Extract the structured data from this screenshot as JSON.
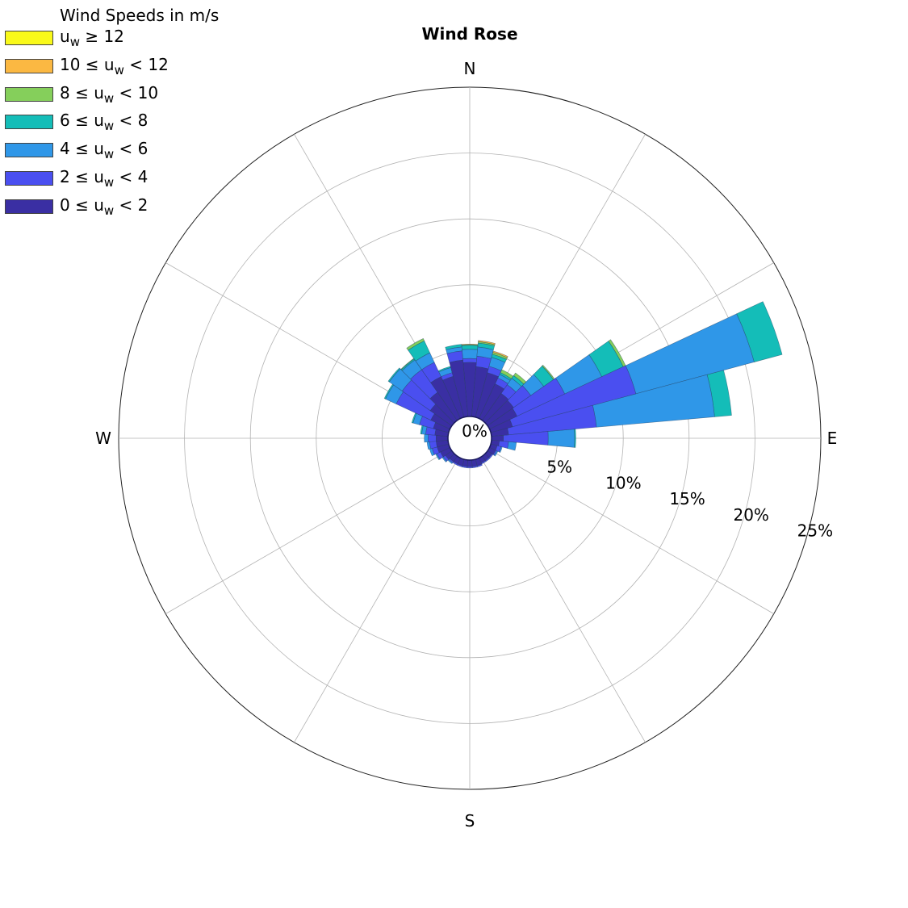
{
  "chart_data": {
    "type": "wind-rose",
    "title": "Wind Rose",
    "legend_title": "Wind Speeds in m/s",
    "legend_position": "top-left",
    "direction_labels": [
      "N",
      "E",
      "S",
      "W"
    ],
    "radial_ticks": [
      5,
      10,
      15,
      20,
      25
    ],
    "radial_tick_labels": [
      "5%",
      "10%",
      "15%",
      "20%",
      "25%"
    ],
    "center_label": "0%",
    "rmax": 25,
    "grid": true,
    "bins": [
      {
        "label": "0 ≤ u_w < 2",
        "color": "#3a2fa3"
      },
      {
        "label": "2 ≤ u_w < 4",
        "color": "#4a4ff0"
      },
      {
        "label": "4 ≤ u_w < 6",
        "color": "#2f97e8"
      },
      {
        "label": "6 ≤ u_w < 8",
        "color": "#14bdb8"
      },
      {
        "label": "8 ≤ u_w < 10",
        "color": "#85cf5b"
      },
      {
        "label": "10 ≤ u_w < 12",
        "color": "#fbb842"
      },
      {
        "label": "u_w ≥ 12",
        "color": "#f9f91a"
      }
    ],
    "legend_order": [
      6,
      5,
      4,
      3,
      2,
      1,
      0
    ],
    "sector_width_deg": 10,
    "sectors": [
      {
        "dir": 0,
        "cum": [
          4.1,
          4.4,
          5.1,
          5.4,
          5.45,
          5.5,
          5.5
        ]
      },
      {
        "dir": 10,
        "cum": [
          3.8,
          4.6,
          5.3,
          5.6,
          5.7,
          5.8,
          5.8
        ]
      },
      {
        "dir": 20,
        "cum": [
          3.5,
          4.0,
          4.7,
          4.95,
          5.1,
          5.2,
          5.2
        ]
      },
      {
        "dir": 30,
        "cum": [
          2.9,
          3.4,
          3.7,
          3.85,
          4.1,
          4.1,
          4.1
        ]
      },
      {
        "dir": 40,
        "cum": [
          2.5,
          3.3,
          3.9,
          4.15,
          4.4,
          4.4,
          4.4
        ]
      },
      {
        "dir": 50,
        "cum": [
          2.4,
          4.0,
          5.2,
          6.1,
          6.2,
          6.2,
          6.2
        ]
      },
      {
        "dir": 60,
        "cum": [
          2.3,
          6.3,
          9.4,
          11.2,
          11.4,
          11.4,
          11.4
        ]
      },
      {
        "dir": 70,
        "cum": [
          1.7,
          11.4,
          20.7,
          22.9,
          22.9,
          22.9,
          22.9
        ]
      },
      {
        "dir": 80,
        "cum": [
          1.3,
          8.0,
          17.0,
          18.3,
          18.3,
          18.3,
          18.3
        ]
      },
      {
        "dir": 90,
        "cum": [
          0.9,
          4.3,
          6.3,
          6.4,
          6.4,
          6.4,
          6.4
        ]
      },
      {
        "dir": 100,
        "cum": [
          0.6,
          1.3,
          1.9,
          1.9,
          1.9,
          1.9,
          1.9
        ]
      },
      {
        "dir": 110,
        "cum": [
          0.5,
          0.8,
          0.9,
          0.9,
          0.9,
          0.9,
          0.9
        ]
      },
      {
        "dir": 120,
        "cum": [
          0.5,
          0.6,
          0.7,
          0.7,
          0.7,
          0.7,
          0.7
        ]
      },
      {
        "dir": 130,
        "cum": [
          0.4,
          0.5,
          0.5,
          0.5,
          0.5,
          0.5,
          0.5
        ]
      },
      {
        "dir": 140,
        "cum": [
          0.4,
          0.5,
          0.5,
          0.5,
          0.5,
          0.5,
          0.5
        ]
      },
      {
        "dir": 150,
        "cum": [
          0.4,
          0.5,
          0.5,
          0.5,
          0.5,
          0.5,
          0.5
        ]
      },
      {
        "dir": 160,
        "cum": [
          0.5,
          0.6,
          0.6,
          0.6,
          0.6,
          0.6,
          0.6
        ]
      },
      {
        "dir": 170,
        "cum": [
          0.5,
          0.6,
          0.6,
          0.6,
          0.6,
          0.6,
          0.6
        ]
      },
      {
        "dir": 180,
        "cum": [
          0.5,
          0.6,
          0.6,
          0.6,
          0.6,
          0.6,
          0.6
        ]
      },
      {
        "dir": 190,
        "cum": [
          0.5,
          0.6,
          0.6,
          0.6,
          0.6,
          0.6,
          0.6
        ]
      },
      {
        "dir": 200,
        "cum": [
          0.5,
          0.6,
          0.6,
          0.6,
          0.6,
          0.6,
          0.6
        ]
      },
      {
        "dir": 210,
        "cum": [
          0.5,
          0.6,
          0.6,
          0.6,
          0.6,
          0.6,
          0.6
        ]
      },
      {
        "dir": 220,
        "cum": [
          0.5,
          0.6,
          0.7,
          0.7,
          0.7,
          0.7,
          0.7
        ]
      },
      {
        "dir": 230,
        "cum": [
          0.6,
          0.8,
          0.9,
          0.9,
          0.9,
          0.9,
          0.9
        ]
      },
      {
        "dir": 240,
        "cum": [
          0.8,
          1.1,
          1.2,
          1.2,
          1.2,
          1.2,
          1.2
        ]
      },
      {
        "dir": 250,
        "cum": [
          0.9,
          1.3,
          1.5,
          1.5,
          1.5,
          1.5,
          1.5
        ]
      },
      {
        "dir": 260,
        "cum": [
          0.9,
          1.4,
          1.6,
          1.6,
          1.6,
          1.6,
          1.6
        ]
      },
      {
        "dir": 270,
        "cum": [
          0.9,
          1.5,
          1.8,
          1.8,
          1.8,
          1.8,
          1.8
        ]
      },
      {
        "dir": 280,
        "cum": [
          1.0,
          1.7,
          2.0,
          2.1,
          2.1,
          2.1,
          2.1
        ]
      },
      {
        "dir": 290,
        "cum": [
          1.2,
          2.3,
          2.8,
          2.9,
          2.9,
          2.9,
          2.9
        ]
      },
      {
        "dir": 300,
        "cum": [
          1.6,
          4.5,
          5.4,
          5.5,
          5.5,
          5.5,
          5.5
        ]
      },
      {
        "dir": 310,
        "cum": [
          2.0,
          4.6,
          5.8,
          5.9,
          5.9,
          5.9,
          5.9
        ]
      },
      {
        "dir": 320,
        "cum": [
          2.6,
          4.7,
          5.6,
          5.7,
          5.75,
          5.75,
          5.75
        ]
      },
      {
        "dir": 330,
        "cum": [
          3.5,
          4.7,
          5.5,
          6.5,
          6.7,
          6.7,
          6.7
        ]
      },
      {
        "dir": 340,
        "cum": [
          3.2,
          3.5,
          3.9,
          4.0,
          4.0,
          4.0,
          4.0
        ]
      },
      {
        "dir": 350,
        "cum": [
          4.3,
          5.0,
          5.3,
          5.5,
          5.5,
          5.5,
          5.5
        ]
      }
    ]
  }
}
